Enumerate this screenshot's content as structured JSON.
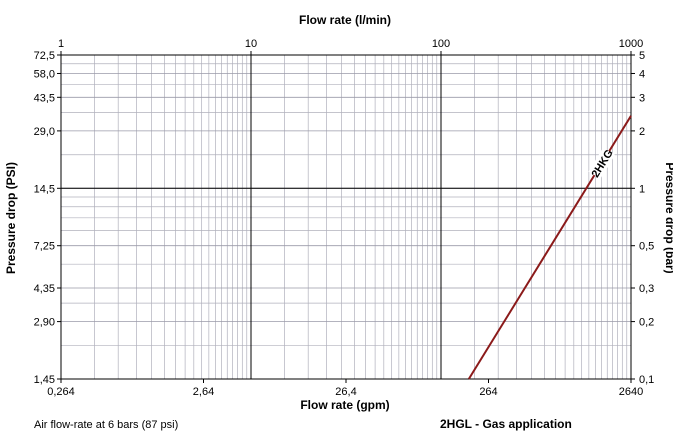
{
  "chart_data": {
    "type": "line",
    "title": "",
    "top_axis": {
      "label": "Flow rate (l/min)",
      "scale": "log",
      "range": [
        1,
        1000
      ],
      "ticks": [
        {
          "v": 1,
          "t": "1"
        },
        {
          "v": 10,
          "t": "10"
        },
        {
          "v": 100,
          "t": "100"
        },
        {
          "v": 1000,
          "t": "1000"
        }
      ]
    },
    "bottom_axis": {
      "label": "Flow rate (gpm)",
      "ticks": [
        {
          "v": 1,
          "t": "0,264"
        },
        {
          "v": 10,
          "t": "2,64"
        },
        {
          "v": 100,
          "t": "26,4"
        },
        {
          "v": 1000,
          "t": "264"
        },
        {
          "v": 10000,
          "t": "2640"
        }
      ]
    },
    "left_axis": {
      "label": "Pressure drop (PSI)",
      "ticks": [
        {
          "v": 0.1,
          "t": "1,45"
        },
        {
          "v": 0.2,
          "t": "2,90"
        },
        {
          "v": 0.3,
          "t": "4,35"
        },
        {
          "v": 0.5,
          "t": "7,25"
        },
        {
          "v": 1,
          "t": "14,5"
        },
        {
          "v": 2,
          "t": "29,0"
        },
        {
          "v": 3,
          "t": "43,5"
        },
        {
          "v": 4,
          "t": "58,0"
        },
        {
          "v": 5,
          "t": "72,5"
        }
      ]
    },
    "right_axis": {
      "label": "Pressure drop (bar)",
      "scale": "log",
      "range": [
        0.1,
        5
      ],
      "ticks": [
        {
          "v": 0.1,
          "t": "0,1"
        },
        {
          "v": 0.2,
          "t": "0,2"
        },
        {
          "v": 0.3,
          "t": "0,3"
        },
        {
          "v": 0.5,
          "t": "0,5"
        },
        {
          "v": 1,
          "t": "1"
        },
        {
          "v": 2,
          "t": "2"
        },
        {
          "v": 3,
          "t": "3"
        },
        {
          "v": 4,
          "t": "4"
        },
        {
          "v": 5,
          "t": "5"
        }
      ]
    },
    "grid": true,
    "series": [
      {
        "name": "2HKG",
        "color": "#8b1a1a",
        "points": [
          {
            "x": 140,
            "y": 0.1
          },
          {
            "x": 1000,
            "y": 2.4
          }
        ]
      }
    ],
    "footnote_left": "Air flow-rate at 6 bars (87 psi)",
    "footnote_right": "2HGL - Gas application"
  }
}
